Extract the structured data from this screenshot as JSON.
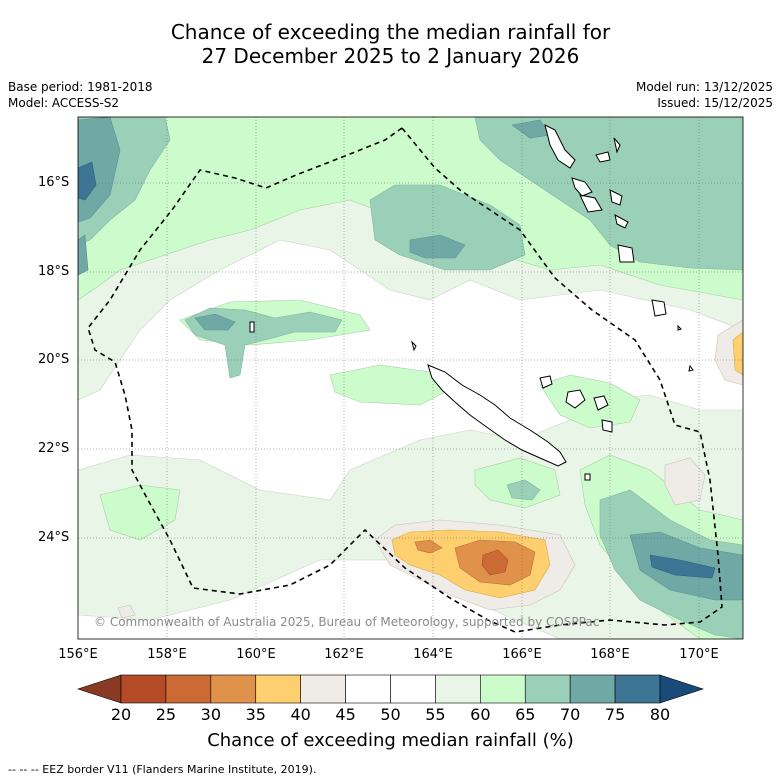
{
  "title": {
    "line1": "Chance of exceeding the median rainfall for",
    "line2": "27 December 2025 to 2 January 2026"
  },
  "meta": {
    "base_period": "Base period: 1981-2018",
    "model": "Model: ACCESS-S2",
    "model_run": "Model run: 13/12/2025",
    "issued": "Issued: 15/12/2025"
  },
  "map": {
    "latitude_labels": [
      "16°S",
      "18°S",
      "20°S",
      "22°S",
      "24°S"
    ],
    "longitude_labels": [
      "156°E",
      "158°E",
      "160°E",
      "162°E",
      "164°E",
      "166°E",
      "168°E",
      "170°E"
    ],
    "credit": "© Commonwealth of Australia 2025, Bureau of Meteorology, supported by COSPPac"
  },
  "colorbar": {
    "ticks": [
      "20",
      "25",
      "30",
      "35",
      "40",
      "45",
      "50",
      "55",
      "60",
      "65",
      "70",
      "75",
      "80"
    ],
    "colors": [
      "#b44a26",
      "#cc6a35",
      "#e0914a",
      "#fdcf6e",
      "#efebe6",
      "#ffffff",
      "#ffffff",
      "#e9f5e6",
      "#ccfccc",
      "#9bd0b8",
      "#6fa8a4",
      "#3c7694"
    ],
    "low_color": "#8a3a22",
    "high_color": "#1a4a7a",
    "label": "Chance of exceeding median rainfall (%)"
  },
  "footnote": "-- -- -- EEZ border V11 (Flanders Marine Institute, 2019)."
}
